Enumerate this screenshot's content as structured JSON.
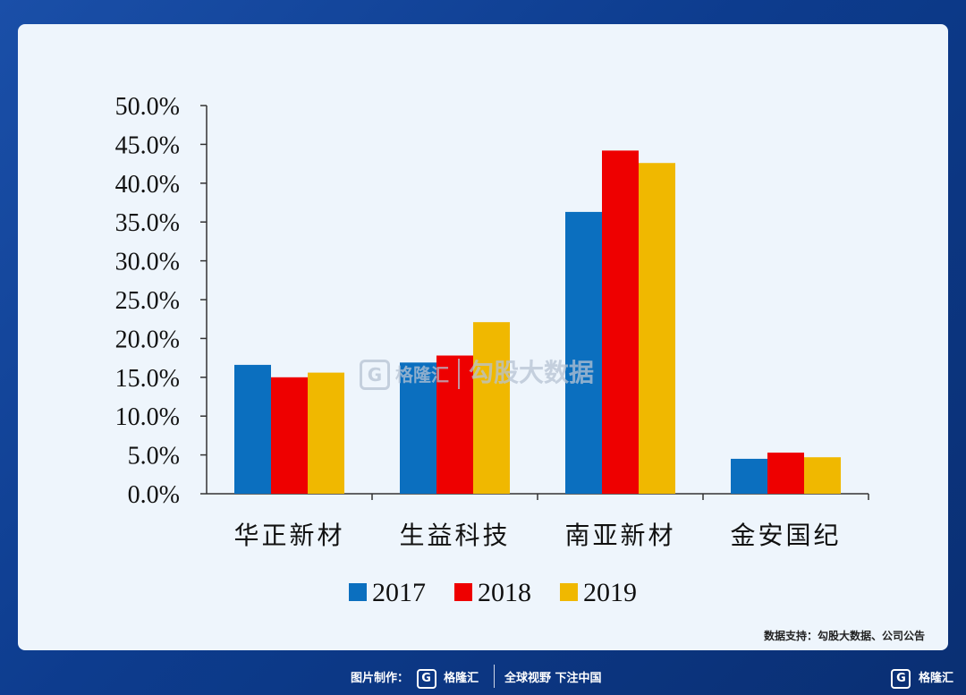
{
  "chart_data": {
    "type": "bar",
    "categories": [
      "华正新材",
      "生益科技",
      "南亚新材",
      "金安国纪"
    ],
    "series": [
      {
        "name": "2017",
        "values": [
          16.6,
          16.9,
          36.3,
          4.5
        ],
        "color": "#0b6fbf"
      },
      {
        "name": "2018",
        "values": [
          15.0,
          17.8,
          44.2,
          5.3
        ],
        "color": "#ee0000"
      },
      {
        "name": "2019",
        "values": [
          15.6,
          22.1,
          42.6,
          4.7
        ],
        "color": "#f0b800"
      }
    ],
    "yticks": [
      "0.0%",
      "5.0%",
      "10.0%",
      "15.0%",
      "20.0%",
      "25.0%",
      "30.0%",
      "35.0%",
      "40.0%",
      "45.0%",
      "50.0%"
    ],
    "ylim": [
      0,
      50
    ],
    "grid": false,
    "legend_position": "bottom"
  },
  "source_text": "数据支持：勾股大数据、公司公告",
  "footer": {
    "credit_label": "图片制作：",
    "brand": "格隆汇",
    "slogan": "全球视野 下注中国",
    "corner_brand": "格隆汇"
  },
  "watermark": {
    "brand": "格隆汇",
    "text": "勾股大数据"
  },
  "icons": {
    "logo": "gelonghui-g-logo-icon"
  }
}
